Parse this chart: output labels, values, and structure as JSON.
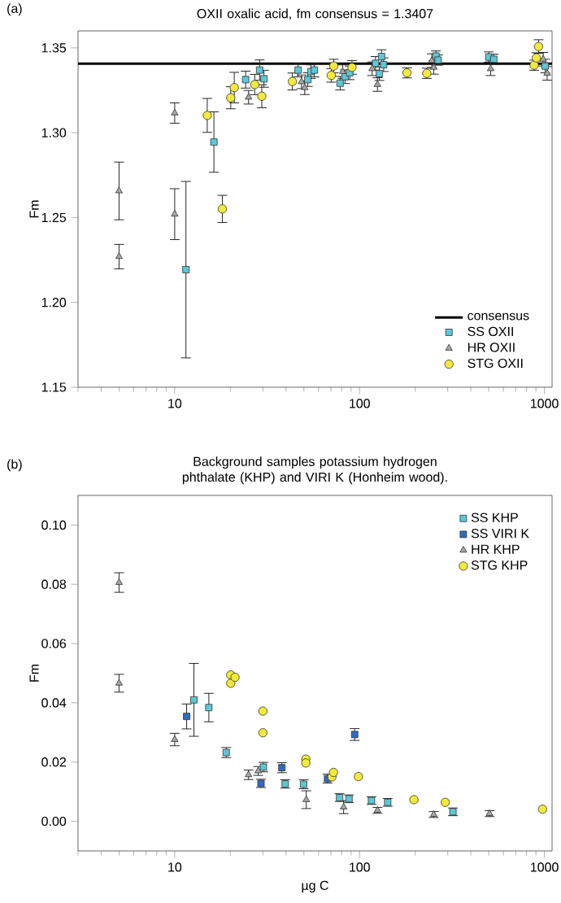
{
  "chart_data": [
    {
      "type": "scatter",
      "title": "OXII oxalic acid, fm consensus = 1.3407",
      "ylabel": "Fm",
      "annotations": [
        "(a)"
      ],
      "log": "x",
      "grid": false,
      "legend": "bottom right",
      "xlim": [
        3,
        1100
      ],
      "xticks": [
        10,
        100,
        1000
      ],
      "ylim": [
        1.15,
        1.36
      ],
      "yticks": [
        1.15,
        {
          "value": 1.2,
          "label": "1.20"
        },
        1.25,
        {
          "value": 1.3,
          "label": "1.30"
        },
        1.35
      ],
      "ref_lines": [
        {
          "axis": "y",
          "value": 1.3407,
          "label": "consensus",
          "color": "#000000",
          "line_style": "solid"
        }
      ],
      "series": [
        {
          "name": "SS OXII",
          "color": "#5bc8d6",
          "marker": "square",
          "x": [
            11.5,
            16.3,
            24.2,
            28.0,
            28.8,
            30.4,
            46.5,
            52.5,
            54.5,
            57,
            78.5,
            83.5,
            86,
            88.5,
            122,
            128,
            131.5,
            135,
            259,
            266,
            500,
            532,
            1010
          ],
          "values": [
            1.2193,
            1.2945,
            1.3313,
            null,
            1.3369,
            1.3318,
            1.3369,
            1.3313,
            1.336,
            1.3369,
            1.3292,
            1.333,
            null,
            1.3353,
            1.3409,
            1.3348,
            1.3449,
            1.3401,
            1.3452,
            1.3428,
            1.3446,
            1.3433,
            1.3393
          ],
          "errors": [
            0.052,
            0.0178,
            0.005,
            null,
            0.006,
            0.005,
            0.004,
            0.004,
            0.004,
            0.004,
            0.004,
            0.004,
            null,
            0.004,
            0.004,
            0.004,
            0.004,
            0.004,
            0.003,
            0.003,
            0.003,
            0.003,
            0.004
          ]
        },
        {
          "name": "HR OXII",
          "color": "#a6a6a6",
          "marker": "triangle",
          "x": [
            5.0,
            5.0,
            10.0,
            10.0,
            25.1,
            48.5,
            50.5,
            81,
            117,
            125,
            246,
            252,
            512,
            985,
            1035
          ],
          "values": [
            1.2657,
            1.227,
            1.3116,
            1.252,
            1.3209,
            1.33,
            1.3265,
            1.336,
            1.3377,
            1.3284,
            1.3425,
            1.3385,
            1.3377,
            1.3433,
            1.335
          ],
          "errors": [
            0.017,
            0.0072,
            0.006,
            0.015,
            0.004,
            0.004,
            0.004,
            0.004,
            0.004,
            0.004,
            0.004,
            0.004,
            0.004,
            0.004,
            0.004
          ]
        },
        {
          "name": "STG OXII",
          "color": "#f2ea3a",
          "marker": "circle",
          "x": [
            15.0,
            18.1,
            20.1,
            21.0,
            27.1,
            29.6,
            43.3,
            70.3,
            72.5,
            91,
            180.6,
            231,
            880,
            905,
            930
          ],
          "values": [
            1.3102,
            1.2551,
            1.3206,
            1.3266,
            1.3284,
            1.3215,
            1.3302,
            1.3338,
            1.3393,
            1.3385,
            1.3353,
            1.335,
            1.3398,
            1.3441,
            1.3508
          ],
          "errors": [
            0.01,
            0.008,
            0.0065,
            0.009,
            0.006,
            0.0068,
            0.005,
            0.004,
            0.004,
            0.004,
            0.003,
            0.003,
            0.003,
            0.003,
            0.004
          ]
        }
      ]
    },
    {
      "type": "scatter",
      "title": "Background samples potassium hydrogen phthalate (KHP) and VIRI K (Honheim wood).",
      "xlabel": "µg C",
      "ylabel": "Fm",
      "annotations": [
        "(b)"
      ],
      "log": "x",
      "grid": false,
      "legend": "top right",
      "xlim": [
        3,
        1100
      ],
      "xticks": [
        10,
        100,
        1000
      ],
      "ylim": [
        -0.01,
        0.11
      ],
      "yticks": [
        {
          "value": 0.0,
          "label": "0.00"
        },
        0.02,
        0.04,
        0.06,
        0.08,
        {
          "value": 0.1,
          "label": "0.10"
        }
      ],
      "series": [
        {
          "name": "SS KHP",
          "color": "#5bc8d6",
          "marker": "square",
          "x": [
            12.7,
            15.3,
            19.0,
            30.2,
            39.6,
            49.8,
            78,
            87.7,
            116,
            142,
            320
          ],
          "values": [
            0.041,
            0.0384,
            0.0232,
            0.0183,
            0.0126,
            0.0125,
            0.008,
            0.0076,
            0.007,
            0.0064,
            0.0032
          ],
          "errors": [
            0.0123,
            0.0048,
            0.0017,
            0.0016,
            0.0014,
            0.0015,
            0.0013,
            0.0013,
            0.0013,
            0.0013,
            0.0013
          ]
        },
        {
          "name": "SS VIRI K",
          "color": "#2e6cc0",
          "marker": "square",
          "x": [
            11.6,
            29.3,
            38.0,
            67.1,
            94.1
          ],
          "values": [
            0.0354,
            0.0128,
            0.0181,
            0.0144,
            0.0293
          ],
          "errors": [
            0.0042,
            0.0014,
            0.0017,
            0.0015,
            0.002
          ]
        },
        {
          "name": "HR KHP",
          "color": "#a6a6a6",
          "marker": "triangle",
          "x": [
            5.0,
            5.0,
            10.0,
            25.1,
            28.3,
            51.5,
            82,
            125,
            252,
            505
          ],
          "values": [
            0.0806,
            0.0466,
            0.0276,
            0.0157,
            0.017,
            0.0073,
            0.0048,
            0.0037,
            0.0023,
            0.0026
          ],
          "errors": [
            0.0033,
            0.003,
            0.0021,
            0.0016,
            0.0015,
            0.003,
            0.0022,
            0.001,
            0.001,
            0.001
          ]
        },
        {
          "name": "STG KHP",
          "color": "#f2ea3a",
          "marker": "circle",
          "x": [
            20.1,
            20.1,
            21.2,
            30.0,
            30.0,
            51.2,
            51.2,
            70.9,
            72.3,
            98.6,
            197,
            291,
            977
          ],
          "values": [
            0.0494,
            0.0466,
            0.0486,
            0.0372,
            0.0299,
            0.021,
            0.0197,
            0.015,
            0.0165,
            0.0151,
            0.0073,
            0.0064,
            0.0041
          ]
        }
      ]
    }
  ]
}
